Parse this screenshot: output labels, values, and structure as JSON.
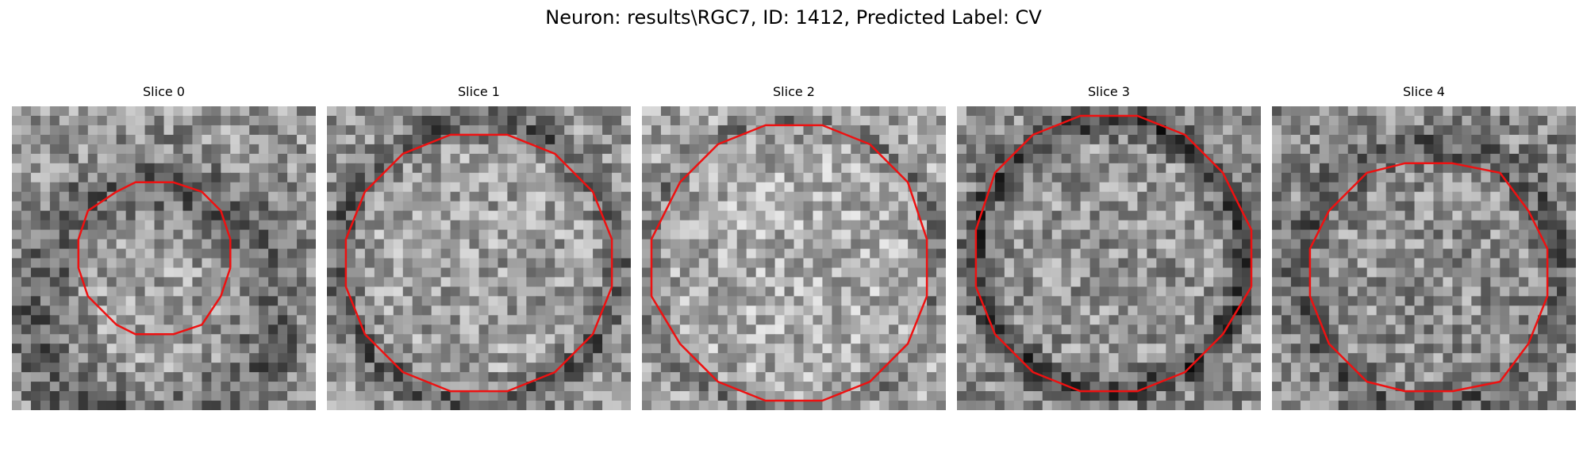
{
  "figure": {
    "title": "Neuron: results\\RGC7, ID: 1412, Predicted Label: CV"
  },
  "panels": [
    {
      "label": "Slice 0"
    },
    {
      "label": "Slice 1"
    },
    {
      "label": "Slice 2"
    },
    {
      "label": "Slice 3"
    },
    {
      "label": "Slice 4"
    }
  ],
  "colors": {
    "outline": "#ee1111"
  }
}
